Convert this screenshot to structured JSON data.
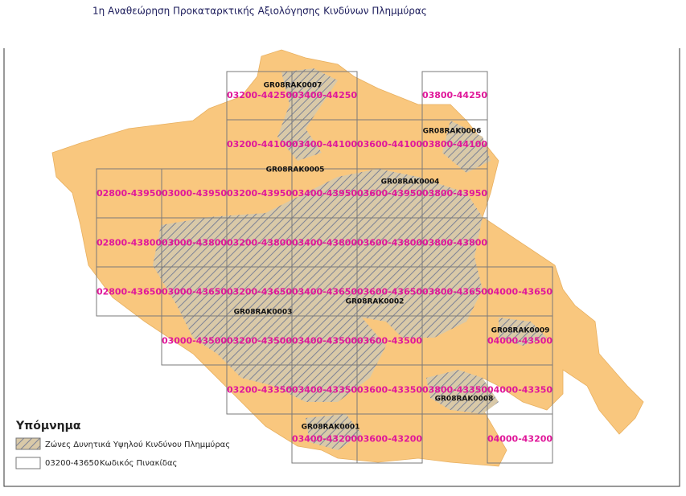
{
  "header": {
    "title": "1η Αναθεώρηση Προκαταρκτικής Αξιολόγησης Κινδύνων Πλημμύρας"
  },
  "tiles": [
    "03200-44250",
    "03400-44250",
    "03800-44250",
    "03200-44100",
    "03400-44100",
    "03600-44100",
    "03800-44100",
    "02800-43950",
    "03000-43950",
    "03200-43950",
    "03400-43950",
    "03600-43950",
    "03800-43950",
    "02800-43800",
    "03000-43800",
    "03200-43800",
    "03400-43800",
    "03600-43800",
    "03800-43800",
    "02800-43650",
    "03000-43650",
    "03200-43650",
    "03400-43650",
    "03600-43650",
    "03800-43650",
    "04000-43650",
    "03000-43500",
    "03200-43500",
    "03400-43500",
    "03600-43500",
    "04000-43500",
    "03200-43350",
    "03400-43350",
    "03600-43350",
    "03800-43350",
    "04000-43350",
    "03400-43200",
    "03600-43200",
    "04000-43200"
  ],
  "zones": [
    "GR08RAK0007",
    "GR08RAK0006",
    "GR08RAK0005",
    "GR08RAK0004",
    "GR08RAK0002",
    "GR08RAK0003",
    "GR08RAK0009",
    "GR08RAK0008",
    "GR08RAK0001"
  ],
  "legend": {
    "title": "Υπόμνημα",
    "items": [
      {
        "label": "Ζώνες Δυνητικά Υψηλού Κινδύνου Πλημμύρας"
      },
      {
        "sample": "03200-43650",
        "label": "Κωδικός Πινακίδας"
      }
    ]
  }
}
